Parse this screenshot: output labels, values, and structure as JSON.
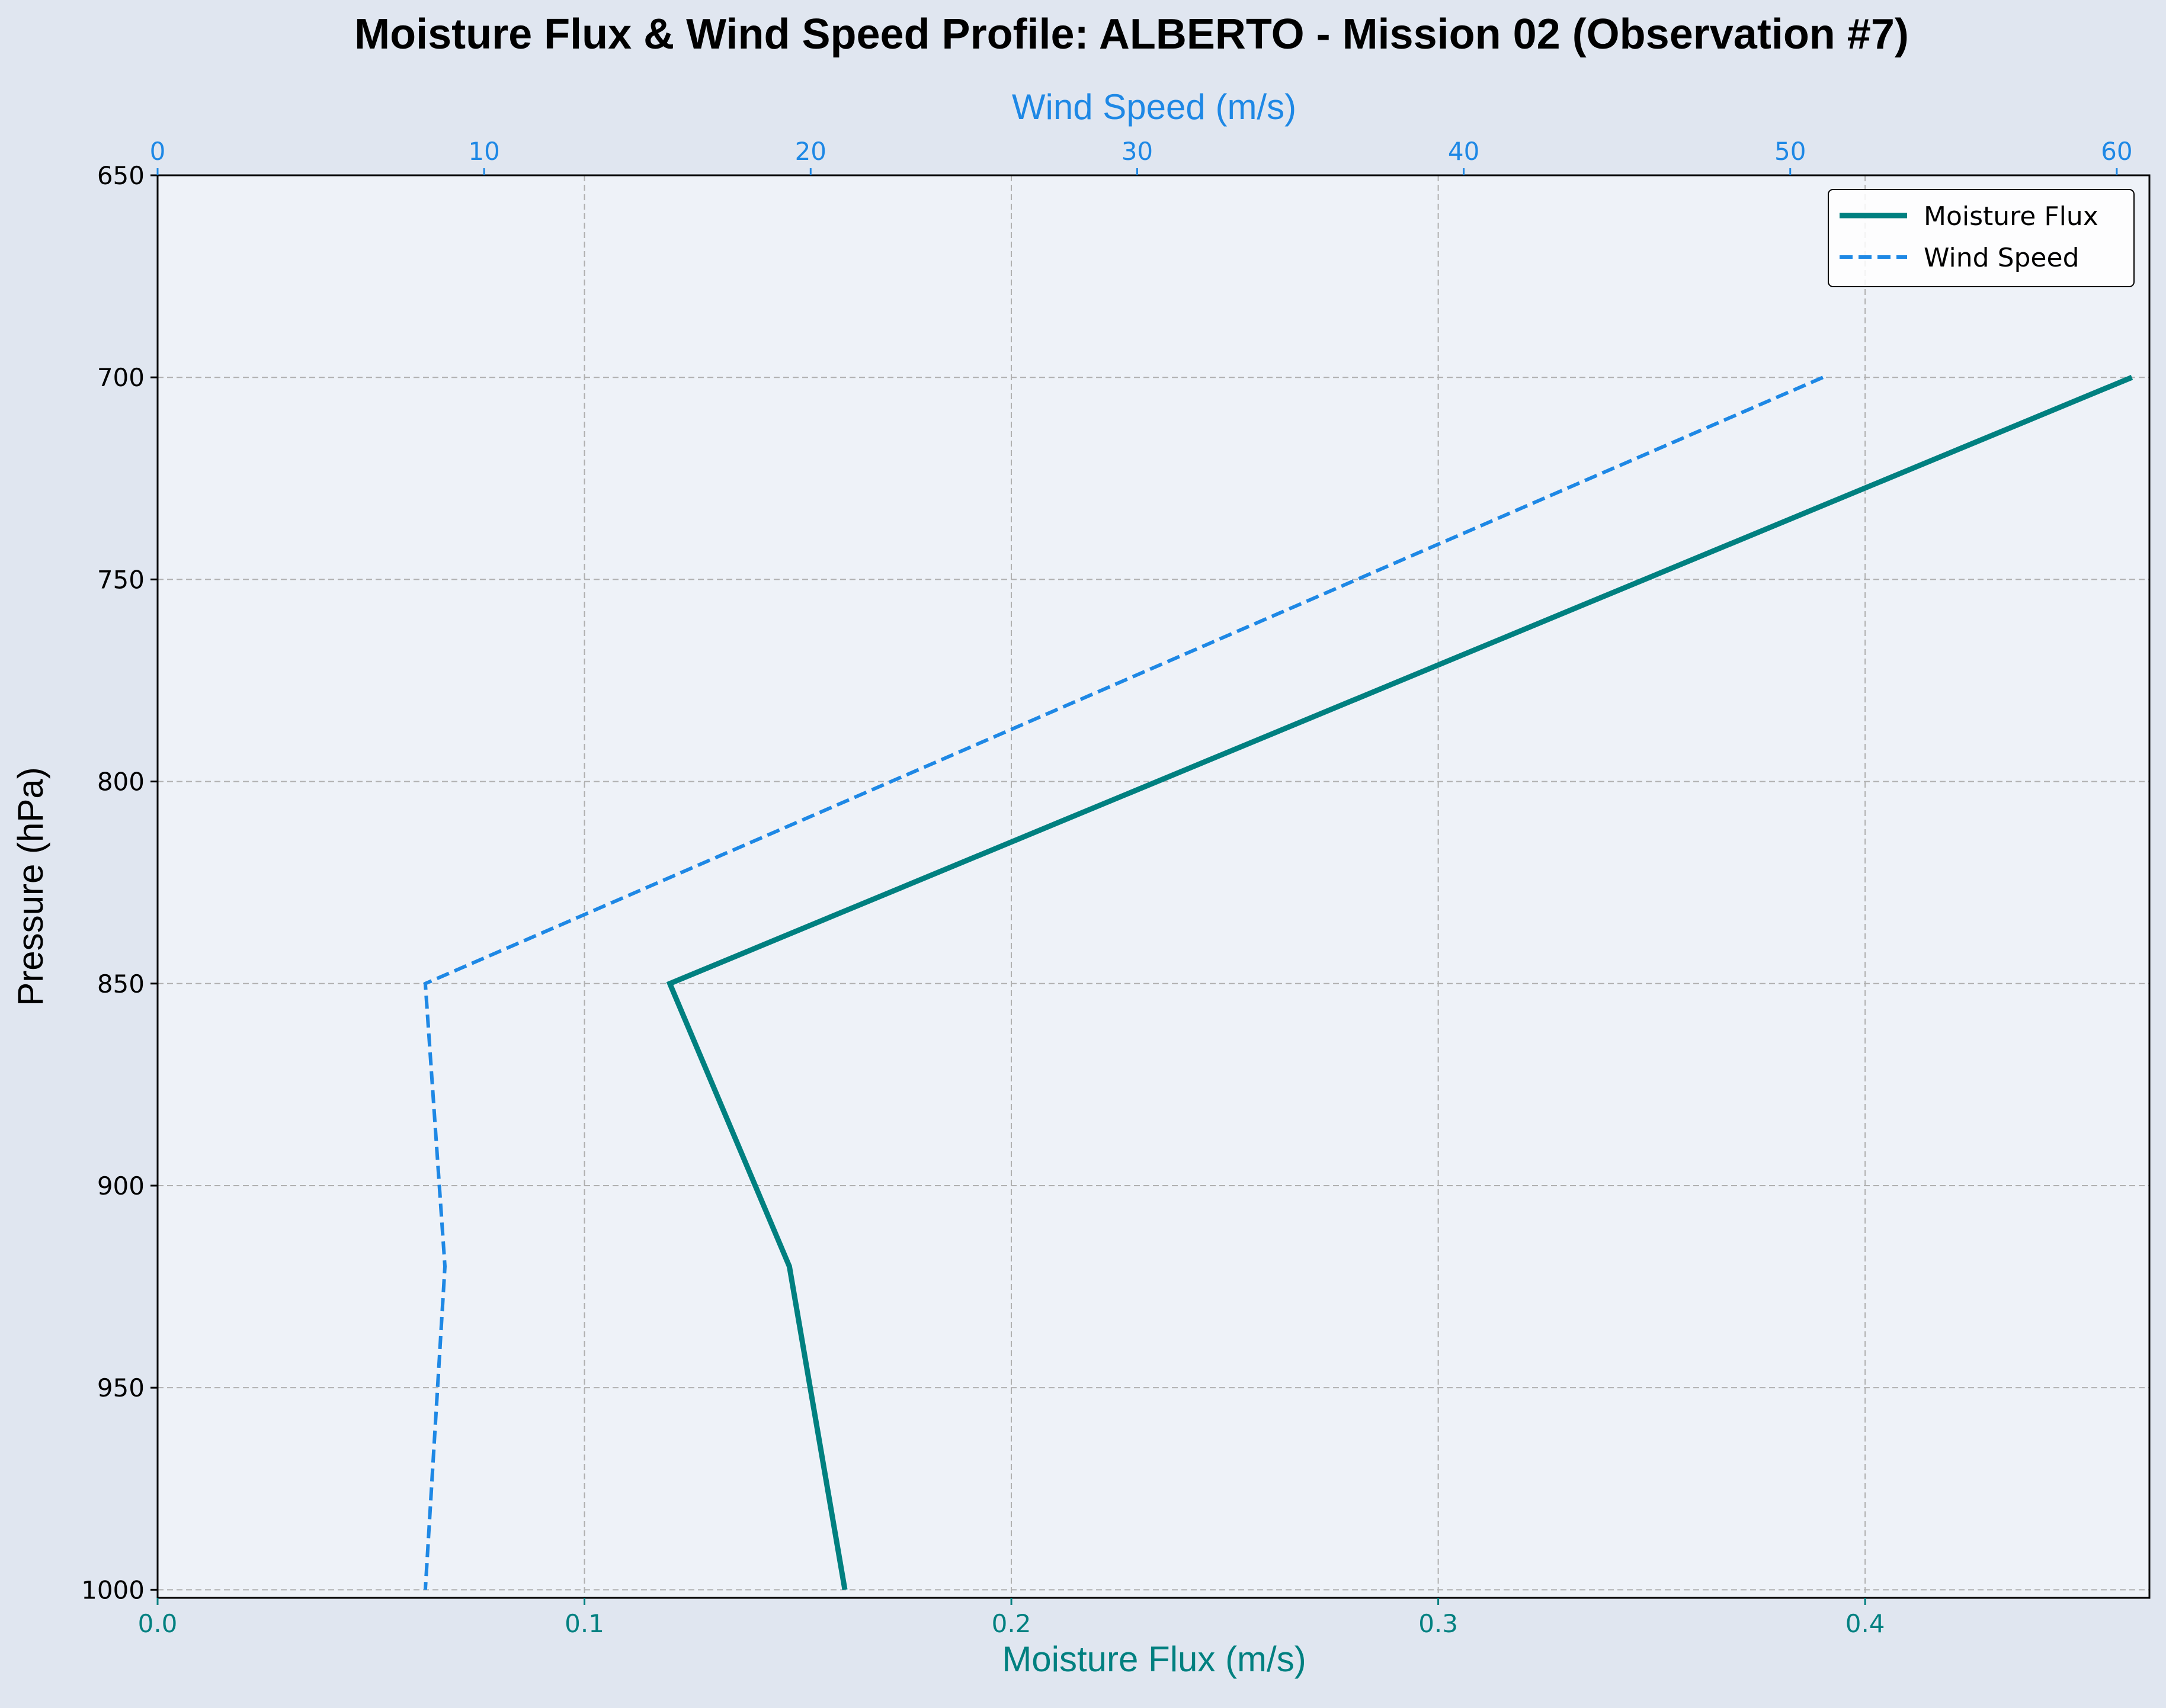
{
  "chart_data": {
    "type": "line",
    "title": "Moisture Flux & Wind Speed Profile: ALBERTO - Mission 02 (Observation #7)",
    "ylabel": "Pressure (hPa)",
    "xlabel_bottom": "Moisture Flux (m/s)",
    "xlabel_top": "Wind Speed (m/s)",
    "y_inverted": true,
    "ylim": [
      1002,
      650
    ],
    "xlim_bottom": [
      0.0,
      0.4666
    ],
    "xlim_top": [
      0,
      61.0
    ],
    "yticks": [
      650,
      700,
      750,
      800,
      850,
      900,
      950,
      1000
    ],
    "xticks_bottom": [
      "0.0",
      "0.1",
      "0.2",
      "0.3",
      "0.4"
    ],
    "xticks_bottom_values": [
      0.0,
      0.1,
      0.2,
      0.3,
      0.4
    ],
    "xticks_top": [
      "0",
      "10",
      "20",
      "30",
      "40",
      "50",
      "60"
    ],
    "xticks_top_values": [
      0,
      10,
      20,
      30,
      40,
      50,
      60
    ],
    "grid": true,
    "legend_position": "top-right",
    "series": [
      {
        "name": "Moisture Flux",
        "axis": "bottom",
        "style": "solid",
        "color": "#008080",
        "pressure": [
          700,
          850,
          920,
          1000
        ],
        "values": [
          0.4625,
          0.12,
          0.148,
          0.161
        ]
      },
      {
        "name": "Wind Speed",
        "axis": "top",
        "style": "dashed",
        "color": "#1e88e5",
        "pressure": [
          700,
          850,
          920,
          1000
        ],
        "values": [
          51.0,
          8.2,
          8.8,
          8.2
        ]
      }
    ]
  },
  "colors": {
    "figure_bg": "#e0e6f0",
    "axes_bg": "#eef2f8",
    "teal": "#008080",
    "blue": "#1e88e5",
    "grid": "#b0b0b0"
  }
}
